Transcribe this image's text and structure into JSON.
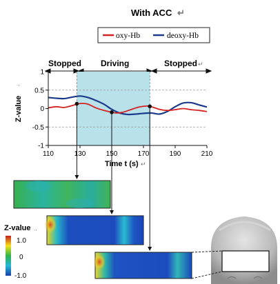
{
  "title": "With ACC",
  "chart_data": {
    "type": "line",
    "phases": [
      {
        "label": "Stopped",
        "x_start": 110,
        "x_end": 128
      },
      {
        "label": "Driving",
        "x_start": 128,
        "x_end": 174,
        "shaded": true
      },
      {
        "label": "Stopped",
        "x_start": 174,
        "x_end": 210
      }
    ],
    "xlabel": "Time t (s)",
    "ylabel": "Z-value",
    "xlim": [
      110,
      210
    ],
    "ylim": [
      -1,
      1
    ],
    "xticks": [
      110,
      130,
      150,
      170,
      190,
      210
    ],
    "yticks": [
      1,
      0.5,
      0,
      -0.5,
      -1
    ],
    "ytick_labels": [
      "1",
      "0.5",
      "0",
      "-0.5",
      "-1"
    ],
    "reference_lines_y": [
      0.5,
      -0.5
    ],
    "legend": {
      "position": "top"
    },
    "colors": {
      "shade": "#b9e1ea",
      "guide": "#888888"
    },
    "series": [
      {
        "name": "oxy-Hb",
        "color": "#d42020",
        "x": [
          110,
          115,
          120,
          125,
          128,
          131,
          135,
          140,
          145,
          150,
          153,
          157,
          162,
          167,
          172,
          175,
          180,
          185,
          190,
          195,
          200,
          205,
          210
        ],
        "y": [
          0.02,
          0.05,
          0.03,
          0.08,
          0.12,
          0.14,
          0.12,
          0.02,
          -0.05,
          -0.1,
          -0.12,
          -0.1,
          -0.03,
          0.04,
          0.07,
          0.05,
          -0.02,
          -0.05,
          -0.03,
          0.0,
          -0.03,
          -0.05,
          -0.08
        ]
      },
      {
        "name": "deoxy-Hb",
        "color": "#1a3a8c",
        "x": [
          110,
          115,
          120,
          125,
          130,
          135,
          140,
          145,
          150,
          155,
          160,
          165,
          170,
          175,
          180,
          185,
          190,
          195,
          200,
          205,
          210
        ],
        "y": [
          0.3,
          0.28,
          0.27,
          0.31,
          0.34,
          0.3,
          0.22,
          0.12,
          -0.02,
          -0.12,
          -0.16,
          -0.15,
          -0.13,
          -0.12,
          -0.15,
          -0.08,
          0.05,
          0.15,
          0.16,
          0.1,
          0.04
        ]
      }
    ],
    "markers": [
      {
        "x": 128,
        "y": 0.13,
        "map": "map-1"
      },
      {
        "x": 150,
        "y": -0.1,
        "map": "map-2"
      },
      {
        "x": 174,
        "y": 0.06,
        "map": "map-3"
      }
    ],
    "colorbar": {
      "title": "Z-value",
      "tick_labels": [
        "1.0",
        "0",
        "-1.0"
      ],
      "colors": [
        "#c41e1e",
        "#f5e21a",
        "#2fb34a",
        "#23b8d6",
        "#1a3fa8"
      ]
    }
  }
}
